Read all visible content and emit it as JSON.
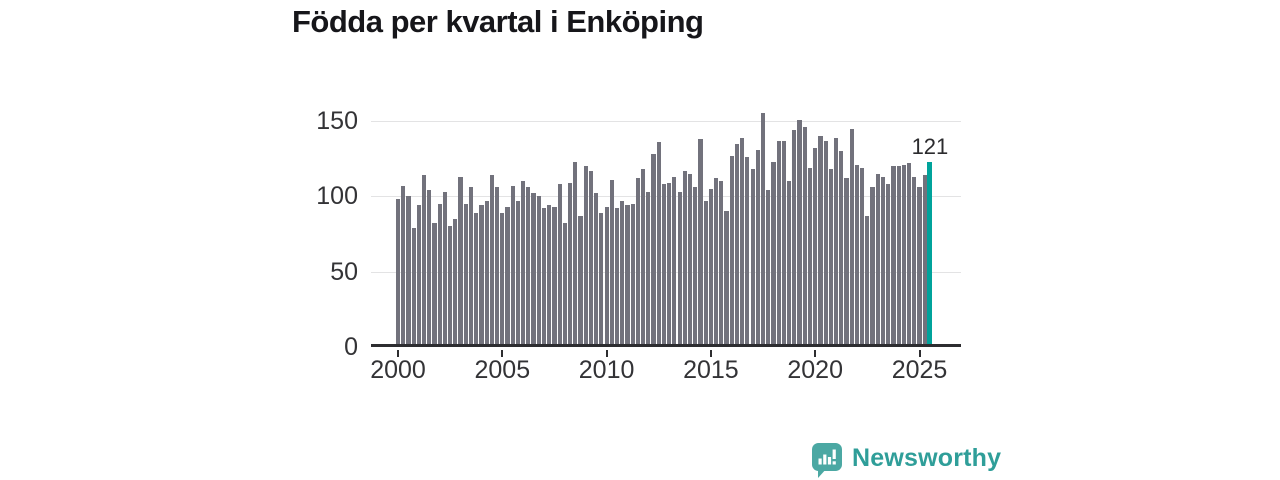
{
  "title": "Födda per kvartal i Enköping",
  "chart_data": {
    "type": "bar",
    "title": "Födda per kvartal i Enköping",
    "frequency": "quarterly",
    "x_start": "2000-Q1",
    "x_end": "2025-Q3",
    "x_tick_labels": [
      "2000",
      "2005",
      "2010",
      "2015",
      "2020",
      "2025"
    ],
    "x_tick_indices": [
      0,
      20,
      40,
      60,
      80,
      100
    ],
    "y_tick_labels": [
      "0",
      "50",
      "100",
      "150"
    ],
    "y_ticks": [
      0,
      50,
      100,
      150
    ],
    "ylim": [
      0,
      164
    ],
    "grid": "horizontal",
    "legend": "none",
    "bar_color": "#72727C",
    "highlight_color": "#00A39B",
    "values": [
      96,
      105,
      98,
      77,
      92,
      112,
      102,
      80,
      93,
      101,
      78,
      83,
      111,
      93,
      104,
      87,
      92,
      95,
      112,
      104,
      87,
      91,
      105,
      95,
      108,
      104,
      100,
      98,
      90,
      92,
      91,
      106,
      80,
      107,
      121,
      85,
      118,
      115,
      100,
      87,
      91,
      109,
      90,
      95,
      92,
      93,
      110,
      116,
      101,
      126,
      134,
      106,
      107,
      111,
      101,
      115,
      113,
      104,
      136,
      95,
      103,
      110,
      108,
      88,
      125,
      133,
      137,
      124,
      116,
      129,
      153,
      102,
      121,
      135,
      135,
      108,
      142,
      149,
      144,
      117,
      130,
      138,
      135,
      116,
      137,
      128,
      110,
      143,
      119,
      117,
      85,
      104,
      113,
      111,
      106,
      118,
      118,
      119,
      120,
      111,
      104,
      112,
      121
    ],
    "highlight": {
      "index": 102,
      "value": 121,
      "label": "121"
    }
  },
  "branding": {
    "logo_text": "Newsworthy",
    "logo_icon": "newsworthy-chart-bubble-icon",
    "accent_color": "#2F9E99"
  }
}
